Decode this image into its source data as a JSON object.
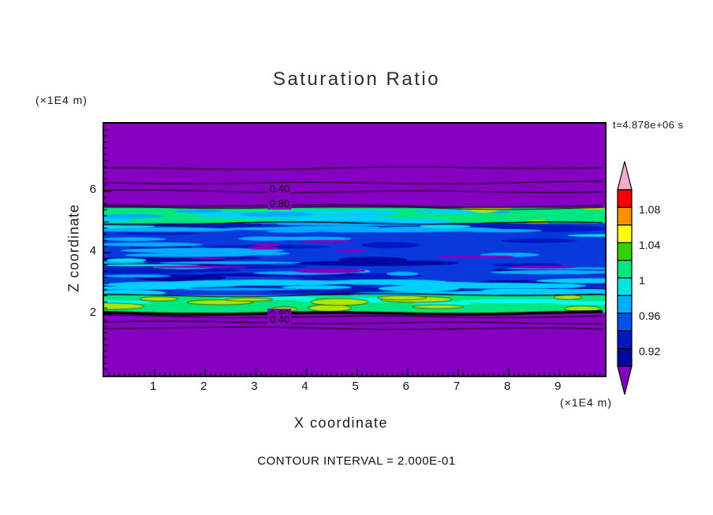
{
  "chart_data": {
    "type": "heatmap",
    "title": "Saturation Ratio",
    "xlabel": "X coordinate",
    "ylabel": "Z coordinate",
    "x_units_label": "(×1E4 m)",
    "y_units_label": "(×1E4 m)",
    "time_label": "t=4.878e+06 s",
    "contour_interval_label": "CONTOUR INTERVAL = 2.000E-01",
    "xlim": [
      0,
      9.9
    ],
    "ylim": [
      0,
      8.2
    ],
    "x_ticks": [
      1,
      2,
      3,
      4,
      5,
      6,
      7,
      8,
      9
    ],
    "y_ticks": [
      2,
      4,
      6
    ],
    "grid": false,
    "legend_position": "right",
    "field_background": "#8500C0",
    "colorbar": {
      "labels": [
        "1.08",
        "1.04",
        "1",
        "0.96",
        "0.92"
      ],
      "values": [
        1.08,
        1.04,
        1.0,
        0.96,
        0.92
      ],
      "segment_colors_top_to_bottom": [
        "#F80000",
        "#FF8E00",
        "#FFFF00",
        "#2FD400",
        "#00E87D",
        "#00E4E4",
        "#00AEFF",
        "#0050F0",
        "#0018C0",
        "#0008A0"
      ],
      "tip_top_color": "#F2ACC4",
      "tip_bottom_color": "#8500C0"
    },
    "contour_labels": [
      {
        "text": "0.40",
        "x": 3.5,
        "z": 6.0
      },
      {
        "text": "0.80",
        "x": 3.5,
        "z": 5.52
      },
      {
        "text": "0.80",
        "x": 3.5,
        "z": 1.93
      },
      {
        "text": "0.40",
        "x": 3.5,
        "z": 1.73
      }
    ],
    "contour_lines": [
      {
        "z": 6.75
      },
      {
        "z": 6.28
      },
      {
        "z": 6.0
      },
      {
        "z": 5.52
      },
      {
        "z": 2.04,
        "width": 3.5
      },
      {
        "z": 1.93
      },
      {
        "z": 1.73
      },
      {
        "z": 1.54
      }
    ],
    "field_bands": [
      {
        "name": "upper green-cyan band",
        "z_top": 5.46,
        "z_bottom": 4.95,
        "color": "#00E87D",
        "streaks": [
          {
            "color": "#00CFFF",
            "count": 10,
            "min_len": 50,
            "max_len": 200,
            "min_h": 4,
            "max_h": 9
          },
          {
            "color": "#00AEFF",
            "count": 6,
            "min_len": 30,
            "max_len": 120,
            "min_h": 3,
            "max_h": 7
          },
          {
            "color": "#ADE800",
            "count": 4,
            "min_len": 25,
            "max_len": 80,
            "min_h": 4,
            "max_h": 8,
            "x0": 0.55,
            "x1": 1.0
          }
        ]
      },
      {
        "name": "central blue band",
        "z_top": 4.95,
        "z_bottom": 2.62,
        "color": "#0839DC",
        "streaks": [
          {
            "color": "#0018C0",
            "count": 24,
            "min_len": 60,
            "max_len": 260,
            "min_h": 4,
            "max_h": 9
          },
          {
            "color": "#0008A0",
            "count": 12,
            "min_len": 60,
            "max_len": 220,
            "min_h": 4,
            "max_h": 10,
            "y0": 0.45,
            "y1": 1.0
          },
          {
            "color": "#00AEFF",
            "count": 26,
            "min_len": 40,
            "max_len": 220,
            "min_h": 3,
            "max_h": 7
          },
          {
            "color": "#00E4E4",
            "count": 10,
            "min_len": 30,
            "max_len": 150,
            "min_h": 2,
            "max_h": 5
          },
          {
            "color": "#8500C0",
            "count": 9,
            "min_len": 30,
            "max_len": 130,
            "min_h": 3,
            "max_h": 6,
            "y0": 0.25,
            "y1": 0.75
          },
          {
            "color": "#00CFFF",
            "count": 14,
            "min_len": 60,
            "max_len": 260,
            "min_h": 4,
            "max_h": 8,
            "y0": 0.78,
            "y1": 1.0
          }
        ]
      },
      {
        "name": "lower green band",
        "z_top": 2.62,
        "z_bottom": 2.05,
        "color": "#00E87D",
        "streaks": [
          {
            "color": "#00FFFF",
            "count": 7,
            "min_len": 40,
            "max_len": 160,
            "min_h": 3,
            "max_h": 6,
            "y0": 0.0,
            "y1": 0.5
          },
          {
            "color": "#ADE800",
            "count": 12,
            "min_len": 25,
            "max_len": 95,
            "min_h": 4,
            "max_h": 9,
            "outline": true
          }
        ]
      }
    ]
  }
}
